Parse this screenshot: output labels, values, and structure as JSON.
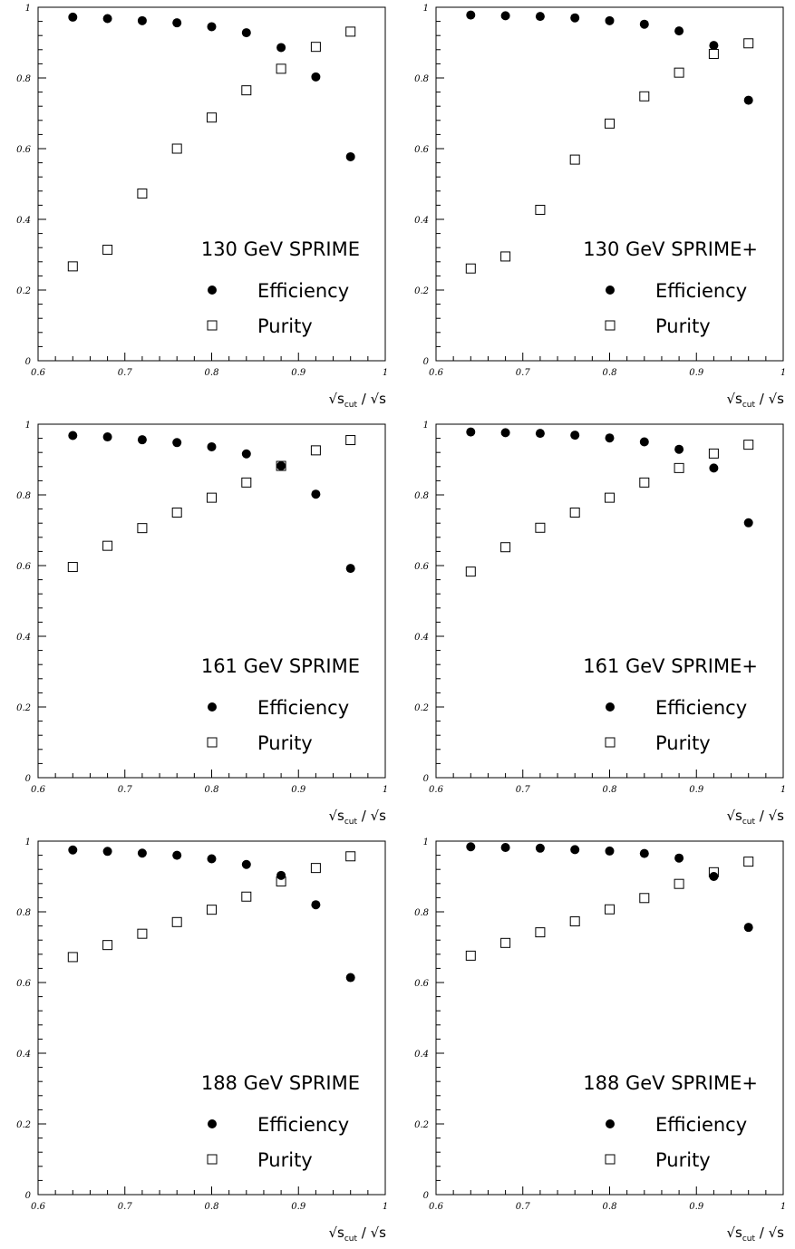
{
  "axis_common": {
    "xlim": [
      0.6,
      1.0
    ],
    "ylim": [
      0,
      1
    ],
    "x_ticks": [
      "0.6",
      "0.7",
      "0.8",
      "0.9",
      "1"
    ],
    "y_ticks": [
      "0",
      "0.2",
      "0.4",
      "0.6",
      "0.8",
      "1"
    ],
    "x_label_prefix": "√s",
    "x_label_sub": "cut",
    "x_label_suffix": " / √s",
    "legend_efficiency": "Efficiency",
    "legend_purity": "Purity"
  },
  "chart_data": [
    {
      "type": "scatter",
      "title": "130 GeV SPRIME",
      "x": [
        0.64,
        0.68,
        0.72,
        0.76,
        0.8,
        0.84,
        0.88,
        0.92,
        0.96
      ],
      "series": [
        {
          "name": "Efficiency",
          "marker": "filled-circle",
          "values": [
            0.972,
            0.968,
            0.962,
            0.956,
            0.945,
            0.928,
            0.886,
            0.803,
            0.577
          ]
        },
        {
          "name": "Purity",
          "marker": "open-square",
          "values": [
            0.267,
            0.314,
            0.473,
            0.6,
            0.688,
            0.765,
            0.826,
            0.888,
            0.931
          ]
        }
      ],
      "xlim": [
        0.6,
        1.0
      ],
      "ylim": [
        0,
        1
      ]
    },
    {
      "type": "scatter",
      "title": "130 GeV SPRIME+",
      "x": [
        0.64,
        0.68,
        0.72,
        0.76,
        0.8,
        0.84,
        0.88,
        0.92,
        0.96
      ],
      "series": [
        {
          "name": "Efficiency",
          "marker": "filled-circle",
          "values": [
            0.978,
            0.976,
            0.974,
            0.97,
            0.962,
            0.952,
            0.933,
            0.892,
            0.737
          ]
        },
        {
          "name": "Purity",
          "marker": "open-square",
          "values": [
            0.261,
            0.295,
            0.427,
            0.569,
            0.671,
            0.748,
            0.815,
            0.868,
            0.898
          ]
        }
      ],
      "xlim": [
        0.6,
        1.0
      ],
      "ylim": [
        0,
        1
      ]
    },
    {
      "type": "scatter",
      "title": "161 GeV SPRIME",
      "x": [
        0.64,
        0.68,
        0.72,
        0.76,
        0.8,
        0.84,
        0.88,
        0.92,
        0.96
      ],
      "series": [
        {
          "name": "Efficiency",
          "marker": "filled-circle",
          "values": [
            0.968,
            0.964,
            0.956,
            0.948,
            0.936,
            0.916,
            0.882,
            0.802,
            0.592
          ]
        },
        {
          "name": "Purity",
          "marker": "open-square",
          "values": [
            0.596,
            0.656,
            0.706,
            0.75,
            0.792,
            0.835,
            0.882,
            0.926,
            0.955
          ]
        }
      ],
      "xlim": [
        0.6,
        1.0
      ],
      "ylim": [
        0,
        1
      ]
    },
    {
      "type": "scatter",
      "title": "161 GeV SPRIME+",
      "x": [
        0.64,
        0.68,
        0.72,
        0.76,
        0.8,
        0.84,
        0.88,
        0.92,
        0.96
      ],
      "series": [
        {
          "name": "Efficiency",
          "marker": "filled-circle",
          "values": [
            0.978,
            0.976,
            0.974,
            0.969,
            0.961,
            0.95,
            0.929,
            0.876,
            0.721
          ]
        },
        {
          "name": "Purity",
          "marker": "open-square",
          "values": [
            0.583,
            0.652,
            0.707,
            0.75,
            0.792,
            0.835,
            0.876,
            0.917,
            0.942
          ]
        }
      ],
      "xlim": [
        0.6,
        1.0
      ],
      "ylim": [
        0,
        1
      ]
    },
    {
      "type": "scatter",
      "title": "188 GeV SPRIME",
      "x": [
        0.64,
        0.68,
        0.72,
        0.76,
        0.8,
        0.84,
        0.88,
        0.92,
        0.96
      ],
      "series": [
        {
          "name": "Efficiency",
          "marker": "filled-circle",
          "values": [
            0.975,
            0.971,
            0.966,
            0.96,
            0.95,
            0.934,
            0.903,
            0.82,
            0.614
          ]
        },
        {
          "name": "Purity",
          "marker": "open-square",
          "values": [
            0.672,
            0.706,
            0.738,
            0.771,
            0.806,
            0.843,
            0.886,
            0.924,
            0.957
          ]
        }
      ],
      "xlim": [
        0.6,
        1.0
      ],
      "ylim": [
        0,
        1
      ]
    },
    {
      "type": "scatter",
      "title": "188 GeV SPRIME+",
      "x": [
        0.64,
        0.68,
        0.72,
        0.76,
        0.8,
        0.84,
        0.88,
        0.92,
        0.96
      ],
      "series": [
        {
          "name": "Efficiency",
          "marker": "filled-circle",
          "values": [
            0.984,
            0.982,
            0.98,
            0.976,
            0.972,
            0.965,
            0.952,
            0.9,
            0.756
          ]
        },
        {
          "name": "Purity",
          "marker": "open-square",
          "values": [
            0.676,
            0.712,
            0.742,
            0.773,
            0.807,
            0.839,
            0.879,
            0.912,
            0.942
          ]
        }
      ],
      "xlim": [
        0.6,
        1.0
      ],
      "ylim": [
        0,
        1
      ]
    }
  ]
}
